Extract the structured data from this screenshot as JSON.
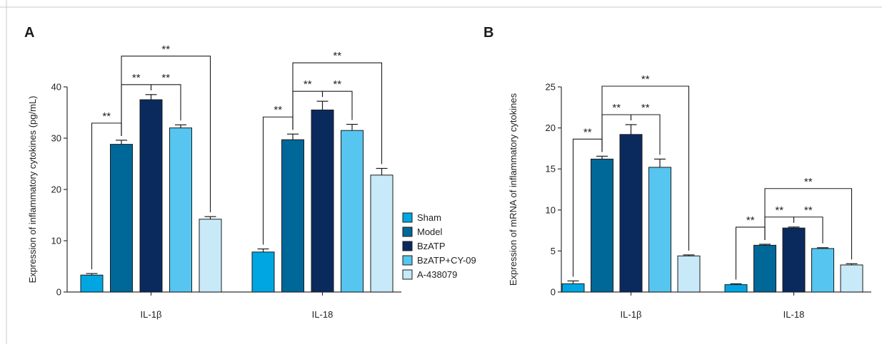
{
  "chart_data": [
    {
      "panel": "A",
      "type": "bar",
      "ylabel": "Expression of inflammatory cytokines (pg/mL)",
      "ylim": [
        0,
        40
      ],
      "yticks": [
        0,
        10,
        20,
        30,
        40
      ],
      "categories": [
        "IL-1β",
        "IL-18"
      ],
      "series": [
        {
          "name": "Sham",
          "values": [
            3.3,
            7.8
          ],
          "errors": [
            0.3,
            0.6
          ],
          "color": "#00a6e2"
        },
        {
          "name": "Model",
          "values": [
            28.8,
            29.7
          ],
          "errors": [
            0.8,
            1.1
          ],
          "color": "#006799"
        },
        {
          "name": "BzATP",
          "values": [
            37.5,
            35.5
          ],
          "errors": [
            1.0,
            1.7
          ],
          "color": "#0a2a5e"
        },
        {
          "name": "BzATP+CY-09",
          "values": [
            32.0,
            31.5
          ],
          "errors": [
            0.6,
            1.2
          ],
          "color": "#56c5f0"
        },
        {
          "name": "A-438079",
          "values": [
            14.2,
            22.8
          ],
          "errors": [
            0.5,
            1.3
          ],
          "color": "#c7e9f8"
        }
      ],
      "significance": [
        {
          "category": 0,
          "from": 0,
          "to": 1,
          "level": 0,
          "label": "**"
        },
        {
          "category": 0,
          "from": 1,
          "to": 2,
          "level": 0,
          "label": "**"
        },
        {
          "category": 0,
          "from": 2,
          "to": 3,
          "level": 0,
          "label": "**"
        },
        {
          "category": 0,
          "from": 1,
          "to": 4,
          "level": 1,
          "label": "**"
        },
        {
          "category": 1,
          "from": 0,
          "to": 1,
          "level": 0,
          "label": "**"
        },
        {
          "category": 1,
          "from": 1,
          "to": 2,
          "level": 0,
          "label": "**"
        },
        {
          "category": 1,
          "from": 2,
          "to": 3,
          "level": 0,
          "label": "**"
        },
        {
          "category": 1,
          "from": 1,
          "to": 4,
          "level": 1,
          "label": "**"
        }
      ],
      "legend": "right"
    },
    {
      "panel": "B",
      "type": "bar",
      "ylabel": "Expression of mRNA of inflammatory cytokines",
      "ylim": [
        0,
        25
      ],
      "yticks": [
        0,
        5,
        10,
        15,
        20,
        25
      ],
      "categories": [
        "IL-1β",
        "IL-18"
      ],
      "series": [
        {
          "name": "Sham",
          "values": [
            1.0,
            0.9
          ],
          "errors": [
            0.35,
            0.1
          ],
          "color": "#00a6e2"
        },
        {
          "name": "Model",
          "values": [
            16.2,
            5.7
          ],
          "errors": [
            0.35,
            0.12
          ],
          "color": "#006799"
        },
        {
          "name": "BzATP",
          "values": [
            19.2,
            7.8
          ],
          "errors": [
            1.2,
            0.12
          ],
          "color": "#0a2a5e"
        },
        {
          "name": "BzATP+CY-09",
          "values": [
            15.2,
            5.3
          ],
          "errors": [
            1.0,
            0.1
          ],
          "color": "#56c5f0"
        },
        {
          "name": "A-438079",
          "values": [
            4.4,
            3.3
          ],
          "errors": [
            0.12,
            0.15
          ],
          "color": "#c7e9f8"
        }
      ],
      "significance": [
        {
          "category": 0,
          "from": 0,
          "to": 1,
          "level": 0,
          "label": "**"
        },
        {
          "category": 0,
          "from": 1,
          "to": 2,
          "level": 0,
          "label": "**"
        },
        {
          "category": 0,
          "from": 2,
          "to": 3,
          "level": 0,
          "label": "**"
        },
        {
          "category": 0,
          "from": 1,
          "to": 4,
          "level": 1,
          "label": "**"
        },
        {
          "category": 1,
          "from": 0,
          "to": 1,
          "level": 0,
          "label": "**"
        },
        {
          "category": 1,
          "from": 1,
          "to": 2,
          "level": 0,
          "label": "**"
        },
        {
          "category": 1,
          "from": 2,
          "to": 3,
          "level": 0,
          "label": "**"
        },
        {
          "category": 1,
          "from": 1,
          "to": 4,
          "level": 1,
          "label": "**"
        }
      ]
    }
  ]
}
